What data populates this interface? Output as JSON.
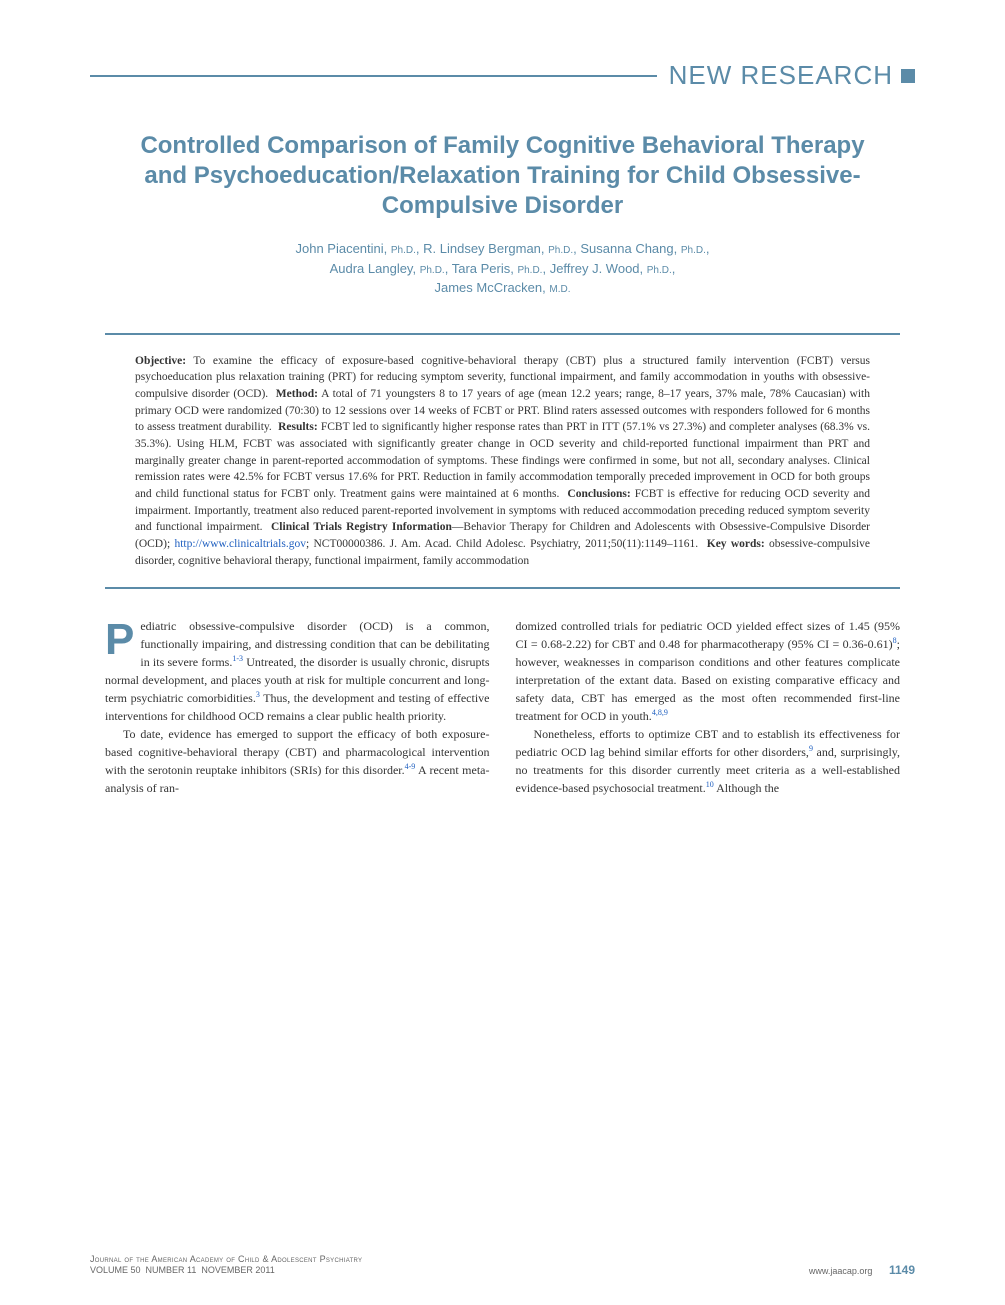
{
  "header": {
    "section_label": "NEW RESEARCH"
  },
  "title": "Controlled Comparison of Family Cognitive Behavioral Therapy and Psychoeducation/Relaxation Training for Child Obsessive-Compulsive Disorder",
  "authors_html": "John Piacentini, <span class=\"degree\">Ph.D.</span>, R. Lindsey Bergman, <span class=\"degree\">Ph.D.</span>, Susanna Chang, <span class=\"degree\">Ph.D.</span>,<br>Audra Langley, <span class=\"degree\">Ph.D.</span>, Tara Peris, <span class=\"degree\">Ph.D.</span>, Jeffrey J. Wood, <span class=\"degree\">Ph.D.</span>,<br>James McCracken, <span class=\"degree\">M.D.</span>",
  "abstract_html": "<b>Objective:</b> To examine the efficacy of exposure-based cognitive-behavioral therapy (CBT) plus a structured family intervention (FCBT) versus psychoeducation plus relaxation training (PRT) for reducing symptom severity, functional impairment, and family accommodation in youths with obsessive-compulsive disorder (OCD). &nbsp;<b>Method:</b> A total of 71 youngsters 8 to 17 years of age (mean 12.2 years; range, 8–17 years, 37% male, 78% Caucasian) with primary OCD were randomized (70:30) to 12 sessions over 14 weeks of FCBT or PRT. Blind raters assessed outcomes with responders followed for 6 months to assess treatment durability. &nbsp;<b>Results:</b> FCBT led to significantly higher response rates than PRT in ITT (57.1% vs 27.3%) and completer analyses (68.3% vs. 35.3%). Using HLM, FCBT was associated with significantly greater change in OCD severity and child-reported functional impairment than PRT and marginally greater change in parent-reported accommodation of symptoms. These findings were confirmed in some, but not all, secondary analyses. Clinical remission rates were 42.5% for FCBT versus 17.6% for PRT. Reduction in family accommodation temporally preceded improvement in OCD for both groups and child functional status for FCBT only. Treatment gains were maintained at 6 months. &nbsp;<b>Conclusions:</b> FCBT is effective for reducing OCD severity and impairment. Importantly, treatment also reduced parent-reported involvement in symptoms with reduced accommodation preceding reduced symptom severity and functional impairment. &nbsp;<b>Clinical Trials Registry Information</b>—Behavior Therapy for Children and Adolescents with Obsessive-Compulsive Disorder (OCD); <span class=\"link\">http://www.clinicaltrials.gov</span>; NCT00000386. J. Am. Acad. Child Adolesc. Psychiatry, 2011;50(11):1149–1161. &nbsp;<b>Key words:</b> obsessive-compulsive disorder, cognitive behavioral therapy, functional impairment, family accommodation",
  "body": {
    "col1_p1_html": "<span class=\"dropcap\">P</span>ediatric obsessive-compulsive disorder (OCD) is a common, functionally impairing, and distressing condition that can be debilitating in its severe forms.<span class=\"sup\">1-3</span> Untreated, the disorder is usually chronic, disrupts normal development, and places youth at risk for multiple concurrent and long-term psychiatric comorbidities.<span class=\"sup\">3</span> Thus, the development and testing of effective interventions for childhood OCD remains a clear public health priority.",
    "col1_p2_html": "To date, evidence has emerged to support the efficacy of both exposure-based cognitive-behavioral therapy (CBT) and pharmacological intervention with the serotonin reuptake inhibitors (SRIs) for this disorder.<span class=\"sup\">4-9</span> A recent meta-analysis of ran-",
    "col2_p1_html": "domized controlled trials for pediatric OCD yielded effect sizes of 1.45 (95% CI = 0.68-2.22) for CBT and 0.48 for pharmacotherapy (95% CI = 0.36-0.61)<span class=\"sup\">8</span>; however, weaknesses in comparison conditions and other features complicate interpretation of the extant data. Based on existing comparative efficacy and safety data, CBT has emerged as the most often recommended first-line treatment for OCD in youth.<span class=\"sup\">4,8,9</span>",
    "col2_p2_html": "Nonetheless, efforts to optimize CBT and to establish its effectiveness for pediatric OCD lag behind similar efforts for other disorders,<span class=\"sup\">9</span> and, surprisingly, no treatments for this disorder currently meet criteria as a well-established evidence-based psychosocial treatment.<span class=\"sup\">10</span> Although the"
  },
  "footer": {
    "journal_line1": "Journal of the American Academy of Child & Adolescent Psychiatry",
    "journal_line2": "VOLUME 50  NUMBER 11  NOVEMBER 2011",
    "site": "www.jaacap.org",
    "page": "1149"
  },
  "colors": {
    "accent": "#5b8ba8",
    "text": "#333333",
    "link": "#2060c0",
    "background": "#ffffff"
  }
}
